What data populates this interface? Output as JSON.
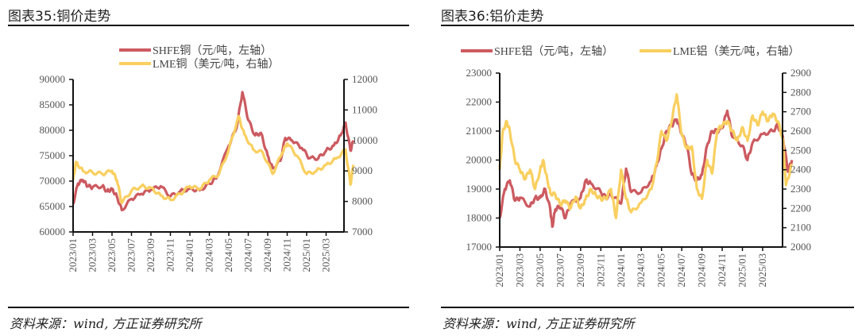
{
  "charts": [
    {
      "title": "图表35:铜价走势",
      "source": "资料来源：wind, 方正证券研究所"
    },
    {
      "title": "图表36:铝价走势",
      "source": "资料来源：wind, 方正证券研究所"
    }
  ],
  "colors": {
    "shfe": "#cc5a60",
    "lme": "#f9cf5f"
  },
  "chart_data": [
    {
      "type": "line",
      "title": "图表35:铜价走势",
      "x_unit": "months since 2023/01",
      "x_ticks": [
        "2023/01",
        "2023/03",
        "2023/05",
        "2023/07",
        "2023/09",
        "2023/11",
        "2024/01",
        "2024/03",
        "2024/05",
        "2024/07",
        "2024/09",
        "2024/11",
        "2025/01",
        "2025/03"
      ],
      "ylim_left": [
        60000,
        90000
      ],
      "yticks_left": [
        60000,
        65000,
        70000,
        75000,
        80000,
        85000,
        90000
      ],
      "ylim_right": [
        7000,
        12000
      ],
      "yticks_right": [
        7000,
        8000,
        9000,
        10000,
        11000,
        12000
      ],
      "legend": "top-center",
      "series": [
        {
          "name": "SHFE铜（元/吨，左轴）",
          "axis": "left",
          "color": "#cc5a60",
          "x": [
            0,
            0.5,
            1,
            1.5,
            2,
            3,
            3.5,
            4,
            4.5,
            5,
            6,
            7,
            8,
            9,
            10,
            11,
            12,
            13,
            14,
            14.7,
            16,
            16.8,
            17.4,
            18,
            18.7,
            19.3,
            20,
            20.5,
            21.3,
            21.8,
            22.5,
            23.5,
            24.3,
            25.2,
            26,
            26.8,
            27.5,
            28,
            28.5,
            28.8
          ],
          "y": [
            65500,
            69500,
            70200,
            69000,
            68800,
            69000,
            68000,
            68500,
            67000,
            64300,
            66500,
            67500,
            68300,
            69000,
            67000,
            68000,
            68500,
            68200,
            69500,
            70500,
            77000,
            80500,
            87500,
            82000,
            79000,
            79500,
            75000,
            72500,
            74000,
            78500,
            78000,
            76500,
            74500,
            74500,
            76000,
            77000,
            79000,
            81500,
            76000,
            78000
          ]
        },
        {
          "name": "LME铜（美元/吨，右轴）",
          "axis": "right",
          "color": "#f9cf5f",
          "x": [
            0,
            0.3,
            1,
            2,
            3,
            4,
            4.5,
            5,
            6,
            7,
            8,
            9,
            10,
            11,
            12,
            13,
            14,
            15,
            16,
            17,
            17.6,
            18.5,
            19.5,
            20.5,
            21.5,
            22,
            23,
            24,
            25,
            26,
            27,
            28,
            28.5,
            28.8
          ],
          "y": [
            8700,
            9300,
            9000,
            8950,
            8900,
            9000,
            8700,
            7950,
            8350,
            8500,
            8450,
            8200,
            8050,
            8250,
            8500,
            8400,
            8700,
            8900,
            9700,
            10800,
            10200,
            9700,
            9600,
            8900,
            9600,
            9900,
            9500,
            8900,
            9000,
            9200,
            9400,
            9700,
            8550,
            9200
          ]
        }
      ]
    },
    {
      "type": "line",
      "title": "图表36:铝价走势",
      "x_unit": "months since 2023/01",
      "x_ticks": [
        "2023/01",
        "2023/03",
        "2023/05",
        "2023/07",
        "2023/09",
        "2023/11",
        "2024/01",
        "2024/03",
        "2024/05",
        "2024/07",
        "2024/09",
        "2024/11",
        "2025/01",
        "2025/03"
      ],
      "ylim_left": [
        17000,
        23000
      ],
      "yticks_left": [
        17000,
        18000,
        19000,
        20000,
        21000,
        22000,
        23000
      ],
      "ylim_right": [
        2000,
        2900
      ],
      "yticks_right": [
        2000,
        2100,
        2200,
        2300,
        2400,
        2500,
        2600,
        2700,
        2800,
        2900
      ],
      "legend": "top-center",
      "series": [
        {
          "name": "SHFE铝（元/吨，左轴）",
          "axis": "left",
          "color": "#cc5a60",
          "x": [
            0,
            0.5,
            1,
            1.5,
            2,
            3,
            3.5,
            4,
            4.5,
            5,
            5.2,
            5.5,
            6,
            6.5,
            7,
            8,
            8.5,
            9,
            10,
            10.5,
            11,
            12,
            12.5,
            13,
            14,
            15,
            15.5,
            16,
            16.5,
            17,
            17.5,
            18,
            18.5,
            19,
            19.5,
            20,
            20.5,
            21,
            21.5,
            22,
            22.5,
            23,
            24,
            24.5,
            25,
            26,
            27,
            27.5,
            28,
            28.5,
            28.9
          ],
          "y": [
            18000,
            19000,
            19300,
            18600,
            18700,
            18400,
            18700,
            18700,
            19000,
            18300,
            17700,
            18300,
            18400,
            18000,
            18500,
            18700,
            19300,
            19200,
            18900,
            18700,
            18800,
            18500,
            19700,
            18900,
            18900,
            19300,
            19800,
            20400,
            21000,
            21200,
            21400,
            20900,
            20500,
            19500,
            19300,
            19500,
            20500,
            21000,
            21000,
            21100,
            21700,
            20800,
            20500,
            20000,
            20600,
            20900,
            21000,
            21200,
            20800,
            19600,
            20000
          ]
        },
        {
          "name": "LME铝（美元/吨，右轴）",
          "axis": "right",
          "color": "#f9cf5f",
          "x": [
            0,
            0.3,
            0.7,
            1,
            1.5,
            2,
            2.5,
            3,
            3.5,
            4,
            4.3,
            4.7,
            5,
            5.5,
            6,
            6.5,
            7,
            7.5,
            8,
            8.5,
            9,
            9.5,
            10,
            10.5,
            11,
            11.5,
            12,
            12.5,
            13,
            14,
            15,
            15.5,
            16,
            16.5,
            17,
            17.5,
            18,
            18.5,
            19,
            19.5,
            20,
            20.5,
            21,
            21.5,
            22,
            22.5,
            23,
            23.5,
            24,
            24.5,
            25,
            25.5,
            26,
            26.5,
            27,
            27.5,
            28,
            28.3,
            28.9
          ],
          "y": [
            2400,
            2600,
            2650,
            2600,
            2450,
            2400,
            2350,
            2400,
            2300,
            2400,
            2450,
            2350,
            2280,
            2270,
            2220,
            2240,
            2200,
            2260,
            2200,
            2250,
            2300,
            2270,
            2250,
            2250,
            2300,
            2150,
            2400,
            2250,
            2180,
            2230,
            2300,
            2430,
            2600,
            2550,
            2650,
            2790,
            2580,
            2510,
            2520,
            2300,
            2250,
            2450,
            2380,
            2600,
            2630,
            2650,
            2600,
            2550,
            2620,
            2550,
            2680,
            2630,
            2700,
            2650,
            2690,
            2650,
            2560,
            2320,
            2430
          ]
        }
      ]
    }
  ]
}
